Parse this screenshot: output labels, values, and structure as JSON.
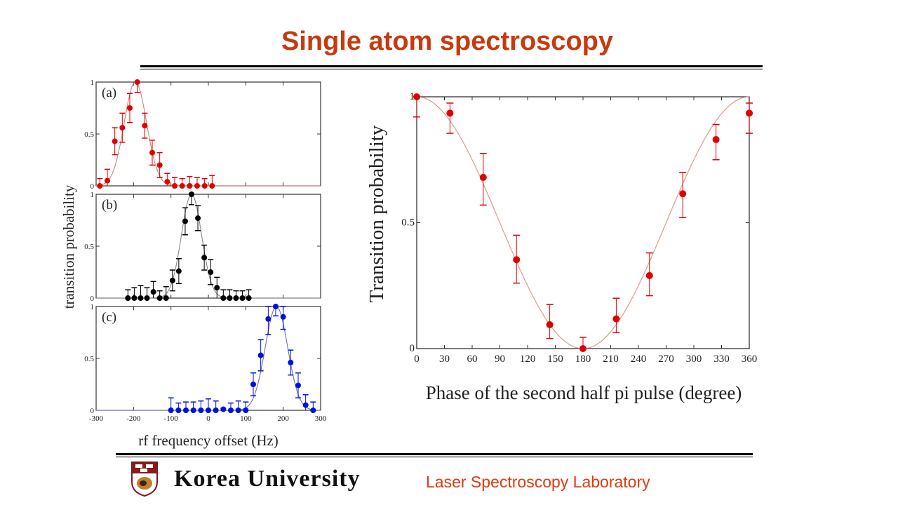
{
  "slide": {
    "title": "Single atom spectroscopy",
    "footer_lab": "Laser Spectroscopy Laboratory",
    "logo_text": "Korea University",
    "title_color": "#C63A10"
  },
  "chart_data": [
    {
      "type": "scatter",
      "panel_label": "(a)",
      "color": "#E00000",
      "fit_color": "#D08070",
      "fit": {
        "model": "gaussian",
        "center": -195,
        "sigma": 30
      },
      "x": [
        -290,
        -270,
        -250,
        -230,
        -210,
        -190,
        -170,
        -150,
        -130,
        -110,
        -90,
        -70,
        -50,
        -30,
        -10,
        10
      ],
      "y": [
        0,
        0.05,
        0.43,
        0.56,
        0.75,
        1.0,
        0.58,
        0.32,
        0.2,
        0.04,
        0,
        0,
        0,
        0,
        0,
        0
      ],
      "yerr": [
        0.07,
        0.11,
        0.13,
        0.14,
        0.14,
        0.1,
        0.12,
        0.12,
        0.12,
        0.08,
        0.08,
        0.07,
        0.09,
        0.08,
        0.07,
        0.1
      ],
      "xlim": [
        -300,
        300
      ],
      "ylim": [
        0,
        1
      ],
      "yticks": [
        "0",
        "0.5",
        "1"
      ]
    },
    {
      "type": "scatter",
      "panel_label": "(b)",
      "color": "#000000",
      "fit_color": "#888888",
      "fit": {
        "model": "gaussian",
        "center": -45,
        "sigma": 27
      },
      "x": [
        -215,
        -198,
        -181,
        -164,
        -147,
        -130,
        -113,
        -96,
        -79,
        -62,
        -45,
        -28,
        -11,
        6,
        23,
        40,
        57,
        74,
        91,
        108
      ],
      "y": [
        0,
        0,
        0,
        0,
        0.06,
        0,
        0,
        0.17,
        0.26,
        0.74,
        1.0,
        0.77,
        0.39,
        0.25,
        0.1,
        0,
        0,
        0,
        0,
        0
      ],
      "yerr": [
        0.08,
        0.1,
        0.12,
        0.1,
        0.1,
        0.07,
        0.11,
        0.1,
        0.12,
        0.13,
        0.1,
        0.12,
        0.12,
        0.12,
        0.1,
        0.08,
        0.08,
        0.07,
        0.07,
        0.08
      ],
      "xlim": [
        -300,
        300
      ],
      "ylim": [
        0,
        1
      ],
      "yticks": [
        "0",
        "0.5",
        "1"
      ]
    },
    {
      "type": "scatter",
      "panel_label": "(c)",
      "color": "#0010E0",
      "fit_color": "#7070B0",
      "fit": {
        "model": "gaussian",
        "center": 182,
        "sigma": 30
      },
      "x": [
        -100,
        -80,
        -60,
        -40,
        -20,
        0,
        20,
        40,
        60,
        80,
        100,
        120,
        140,
        160,
        180,
        200,
        220,
        240,
        260,
        280
      ],
      "y": [
        0,
        0,
        0,
        0,
        0,
        0,
        0,
        0.01,
        0,
        0,
        0,
        0.25,
        0.53,
        0.88,
        1.0,
        0.9,
        0.46,
        0.24,
        0.05,
        0
      ],
      "yerr": [
        0.12,
        0.07,
        0.08,
        0.08,
        0.09,
        0.11,
        0.09,
        0.01,
        0.07,
        0.09,
        0.08,
        0.11,
        0.15,
        0.15,
        0.09,
        0.12,
        0.12,
        0.12,
        0.1,
        0.08
      ],
      "xlim": [
        -300,
        300
      ],
      "ylim": [
        0,
        1
      ],
      "yticks": [
        "0",
        "0.5",
        "1"
      ],
      "xticks": [
        "-300",
        "-200",
        "-100",
        "0",
        "100",
        "200",
        "300"
      ],
      "xlabel": "rf frequency offset (Hz)",
      "ylabel": "transition probability"
    },
    {
      "type": "scatter",
      "color": "#E00000",
      "fit_color": "#E09080",
      "fit": {
        "model": "cosine",
        "formula": "(1+cos(x))/2"
      },
      "x": [
        0,
        36,
        72,
        108,
        144,
        180,
        216,
        252,
        288,
        324,
        360
      ],
      "y": [
        1.0,
        0.935,
        0.68,
        0.353,
        0.095,
        0.0,
        0.118,
        0.29,
        0.615,
        0.83,
        0.935
      ],
      "yerr_low": [
        0.08,
        0.08,
        0.11,
        0.093,
        0.055,
        0.0,
        0.055,
        0.08,
        0.095,
        0.08,
        0.08
      ],
      "yerr_high": [
        0.0,
        0.04,
        0.095,
        0.097,
        0.08,
        0.045,
        0.082,
        0.09,
        0.085,
        0.06,
        0.04
      ],
      "xlim": [
        0,
        360
      ],
      "ylim": [
        0,
        1
      ],
      "xticks": [
        "0",
        "30",
        "60",
        "90",
        "120",
        "150",
        "180",
        "210",
        "240",
        "270",
        "300",
        "330",
        "360"
      ],
      "yticks": [
        "0",
        "0.5",
        "1"
      ],
      "xlabel": "Phase of the second half pi pulse (degree)",
      "ylabel": "Transition probability"
    }
  ]
}
